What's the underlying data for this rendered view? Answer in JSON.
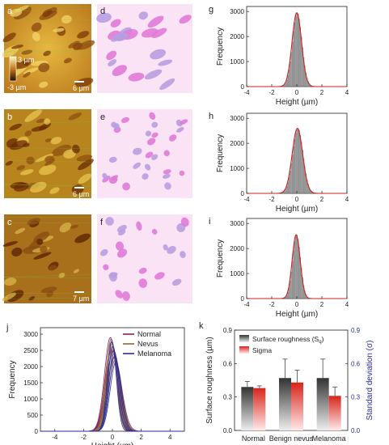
{
  "panels": {
    "a": {
      "letter": "a",
      "scale_bar": "6 µm",
      "colorbar_max": "3 µm",
      "colorbar_min": "-3 µm"
    },
    "b": {
      "letter": "b",
      "scale_bar": "6 µm"
    },
    "c": {
      "letter": "c",
      "scale_bar": "7 µm"
    },
    "d": {
      "letter": "d"
    },
    "e": {
      "letter": "e"
    },
    "f": {
      "letter": "f"
    }
  },
  "colors": {
    "afm_dark": "#6b2a00",
    "afm_mid": "#c27a1a",
    "afm_light": "#f0d060",
    "ellipse_pink": "#e07ad8",
    "ellipse_lilac": "#b89de0",
    "bg_pink": "#fbe3f6",
    "hist_bar": "#9a9a9a",
    "fit_line": "#cc2222",
    "normal": "#8a1e5a",
    "nevus": "#8a6b2a",
    "melanoma": "#2a2a9a"
  },
  "chart_data": [
    {
      "id": "g",
      "type": "bar",
      "letter": "g",
      "xlabel": "Height (µm)",
      "ylabel": "Frequency",
      "xlim": [
        -4,
        4
      ],
      "ylim": [
        0,
        3200
      ],
      "xticks": [
        "-4",
        "-2",
        "0",
        "2",
        "4"
      ],
      "yticks": [
        "0",
        "1000",
        "2000",
        "3000"
      ],
      "fit_center": 0.0,
      "fit_sigma": 0.38,
      "peak": 2950
    },
    {
      "id": "h",
      "type": "bar",
      "letter": "h",
      "xlabel": "Height (µm)",
      "ylabel": "Frequency",
      "xlim": [
        -4,
        4
      ],
      "ylim": [
        0,
        3200
      ],
      "xticks": [
        "-4",
        "-2",
        "0",
        "2",
        "4"
      ],
      "yticks": [
        "0",
        "1000",
        "2000",
        "3000"
      ],
      "fit_center": 0.05,
      "fit_sigma": 0.42,
      "peak": 2600
    },
    {
      "id": "i",
      "type": "bar",
      "letter": "i",
      "xlabel": "Height (µm)",
      "ylabel": "Frequency",
      "xlim": [
        -4,
        4
      ],
      "ylim": [
        0,
        3200
      ],
      "xticks": [
        "-4",
        "-2",
        "0",
        "2",
        "4"
      ],
      "yticks": [
        "0",
        "1000",
        "2000",
        "3000"
      ],
      "fit_center": -0.05,
      "fit_sigma": 0.32,
      "peak": 2550
    },
    {
      "id": "j",
      "type": "line",
      "letter": "j",
      "xlabel": "Height (µm)",
      "ylabel": "Frequency",
      "xlim": [
        -5,
        5
      ],
      "ylim": [
        0,
        3200
      ],
      "xticks": [
        "-4",
        "-2",
        "0",
        "2",
        "4"
      ],
      "yticks": [
        "0",
        "500",
        "1000",
        "1500",
        "2000",
        "2500",
        "3000"
      ],
      "legend_position": "top-right",
      "series": [
        {
          "name": "Normal",
          "center": 0.0,
          "sigma": 0.45,
          "peaks": [
            2900,
            2750,
            2600,
            2500,
            2300
          ]
        },
        {
          "name": "Nevus",
          "center": 0.05,
          "sigma": 0.4,
          "peaks": [
            2850,
            2700,
            2550,
            2400,
            2200
          ]
        },
        {
          "name": "Melanoma",
          "center": 0.1,
          "sigma": 0.35,
          "peaks": [
            2800,
            2650,
            2500,
            2350,
            2150
          ]
        }
      ]
    },
    {
      "id": "k",
      "type": "bar",
      "letter": "k",
      "categories": [
        "Normal",
        "Benign nevus",
        "Melanoma"
      ],
      "ylabel": "Surface roughness (µm)",
      "ylabel_right": "Standard deviation (σ)",
      "ylim": [
        0,
        0.9
      ],
      "ylim_right": [
        0,
        0.9
      ],
      "yticks": [
        "0.0",
        "0.3",
        "0.6",
        "0.9"
      ],
      "yticks_right": [
        "0.0",
        "0.3",
        "0.6",
        "0.9"
      ],
      "legend_position": "top-left",
      "series": [
        {
          "name": "Surface roughness (Sq)",
          "legend_label": "Surface roughness (S",
          "legend_sub": "q",
          "legend_tail": ")",
          "values": [
            0.39,
            0.47,
            0.47
          ],
          "errors": [
            0.05,
            0.17,
            0.17
          ]
        },
        {
          "name": "Sigma",
          "values": [
            0.38,
            0.43,
            0.31
          ],
          "errors": [
            0.02,
            0.11,
            0.08
          ]
        }
      ]
    }
  ]
}
